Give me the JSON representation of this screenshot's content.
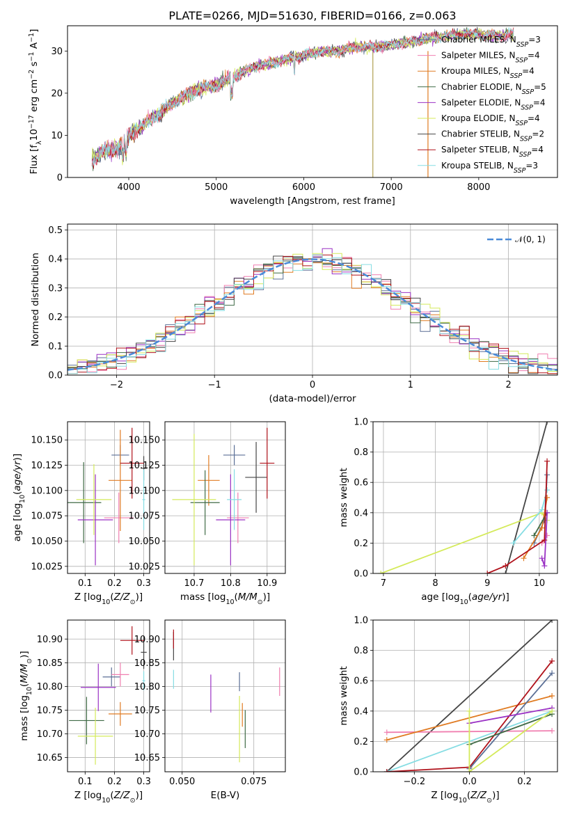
{
  "figure": {
    "title": "PLATE=0266, MJD=51630, FIBERID=0166, z=0.063"
  },
  "models": [
    {
      "name": "Chabrier MILES",
      "nssp": "3",
      "color": "#5b6f96"
    },
    {
      "name": "Salpeter MILES",
      "nssp": "4",
      "color": "#f07fb0"
    },
    {
      "name": "Kroupa MILES",
      "nssp": "4",
      "color": "#e07b22"
    },
    {
      "name": "Chabrier ELODIE",
      "nssp": "5",
      "color": "#3f6a45"
    },
    {
      "name": "Salpeter ELODIE",
      "nssp": "4",
      "color": "#9a31c4"
    },
    {
      "name": "Kroupa ELODIE",
      "nssp": "4",
      "color": "#d4ea5a"
    },
    {
      "name": "Chabrier STELIB",
      "nssp": "2",
      "color": "#444444"
    },
    {
      "name": "Salpeter STELIB",
      "nssp": "4",
      "color": "#b0121b"
    },
    {
      "name": "Kroupa STELIB",
      "nssp": "3",
      "color": "#86dde3"
    }
  ],
  "chart_data": [
    {
      "id": "spectrum",
      "type": "line",
      "xlabel": "wavelength [Angstrom, rest frame]",
      "ylabel": "Flux [f_λ 10^-17 erg cm^-2 s^-1 A^-1]",
      "xlim": [
        3300,
        8900
      ],
      "ylim": [
        0,
        36
      ],
      "xticks": [
        "4000",
        "5000",
        "6000",
        "7000",
        "8000"
      ],
      "yticks": [
        "0",
        "10",
        "20",
        "30"
      ],
      "grid": false,
      "legend": "right",
      "continuum": [
        [
          3580,
          4
        ],
        [
          3700,
          6
        ],
        [
          3850,
          7
        ],
        [
          3950,
          8
        ],
        [
          4000,
          10
        ],
        [
          4200,
          13
        ],
        [
          4400,
          16
        ],
        [
          4600,
          19
        ],
        [
          4800,
          21
        ],
        [
          5000,
          22
        ],
        [
          5200,
          24
        ],
        [
          5400,
          26
        ],
        [
          5600,
          27
        ],
        [
          5800,
          28
        ],
        [
          6000,
          29
        ],
        [
          6200,
          30
        ],
        [
          6400,
          30
        ],
        [
          6600,
          31
        ],
        [
          6800,
          31
        ],
        [
          7000,
          31.5
        ],
        [
          7200,
          32
        ],
        [
          7400,
          33
        ],
        [
          7600,
          33.5
        ],
        [
          7800,
          34
        ],
        [
          8000,
          34
        ],
        [
          8200,
          33.5
        ],
        [
          8400,
          34
        ]
      ],
      "spikes": [
        [
          6790,
          0
        ],
        [
          7420,
          0
        ]
      ]
    },
    {
      "id": "residuals",
      "type": "histogram",
      "xlabel": "(data-model)/error",
      "ylabel": "Normed distribution",
      "xlim": [
        -2.5,
        2.5
      ],
      "ylim": [
        0,
        0.52
      ],
      "xticks": [
        "−2",
        "−1",
        "0",
        "1",
        "2"
      ],
      "yticks": [
        "0.0",
        "0.1",
        "0.2",
        "0.3",
        "0.4",
        "0.5"
      ],
      "grid": true,
      "legend": "top-right",
      "reference_label": "𝒩(0, 1)",
      "bin_width": 0.1
    },
    {
      "id": "age_vs_Z",
      "type": "errorbar",
      "xlabel": "Z [log10(Z/Z⊙)]",
      "ylabel": "age  [log10(age/yr)]",
      "xlim": [
        0.04,
        0.32
      ],
      "ylim": [
        10.018,
        10.168
      ],
      "xticks": [
        "0.1",
        "0.2",
        "0.3"
      ],
      "yticks": [
        "10.025",
        "10.050",
        "10.075",
        "10.100",
        "10.125",
        "10.150"
      ],
      "points": [
        {
          "m": 0,
          "x": 0.22,
          "xe": 0.03,
          "y": 10.135,
          "ye": 0.01
        },
        {
          "m": 1,
          "x": 0.215,
          "xe": 0.05,
          "y": 10.073,
          "ye": 0.025
        },
        {
          "m": 2,
          "x": 0.22,
          "xe": 0.04,
          "y": 10.11,
          "ye": 0.05
        },
        {
          "m": 3,
          "x": 0.095,
          "xe": 0.06,
          "y": 10.088,
          "ye": 0.04
        },
        {
          "m": 4,
          "x": 0.135,
          "xe": 0.06,
          "y": 10.071,
          "ye": 0.045
        },
        {
          "m": 5,
          "x": 0.13,
          "xe": 0.06,
          "y": 10.091,
          "ye": 0.035
        },
        {
          "m": 6,
          "x": 0.3,
          "xe": 0.01,
          "y": 10.122,
          "ye": 0.012
        },
        {
          "m": 7,
          "x": 0.26,
          "xe": 0.04,
          "y": 10.127,
          "ye": 0.035
        },
        {
          "m": 8,
          "x": 0.3,
          "xe": 0.005,
          "y": 10.091,
          "ye": 0.03
        }
      ]
    },
    {
      "id": "age_vs_mass",
      "type": "errorbar",
      "xlabel": "mass [log10(M/M⊙)]",
      "ylabel": "",
      "xlim": [
        10.62,
        10.95
      ],
      "ylim": [
        10.018,
        10.168
      ],
      "xticks": [
        "10.7",
        "10.8",
        "10.9"
      ],
      "yticks": [
        "10.025",
        "10.050",
        "10.075",
        "10.100",
        "10.125",
        "10.150"
      ],
      "points": [
        {
          "m": 0,
          "x": 10.81,
          "xe": 0.03,
          "y": 10.135,
          "ye": 0.01
        },
        {
          "m": 1,
          "x": 10.82,
          "xe": 0.03,
          "y": 10.073,
          "ye": 0.025
        },
        {
          "m": 2,
          "x": 10.74,
          "xe": 0.03,
          "y": 10.11,
          "ye": 0.025
        },
        {
          "m": 3,
          "x": 10.73,
          "xe": 0.04,
          "y": 10.088,
          "ye": 0.032
        },
        {
          "m": 4,
          "x": 10.8,
          "xe": 0.04,
          "y": 10.071,
          "ye": 0.045
        },
        {
          "m": 5,
          "x": 10.7,
          "xe": 0.06,
          "y": 10.091,
          "ye": 0.065
        },
        {
          "m": 6,
          "x": 10.87,
          "xe": 0.03,
          "y": 10.113,
          "ye": 0.035
        },
        {
          "m": 7,
          "x": 10.9,
          "xe": 0.02,
          "y": 10.127,
          "ye": 0.035
        },
        {
          "m": 8,
          "x": 10.81,
          "xe": 0.02,
          "y": 10.091,
          "ye": 0.03
        }
      ]
    },
    {
      "id": "massweight_vs_age",
      "type": "line",
      "xlabel": "age  [log10(age/yr)]",
      "ylabel": "mass weight",
      "xlim": [
        6.8,
        10.35
      ],
      "ylim": [
        0,
        1.0
      ],
      "xticks": [
        "7",
        "8",
        "9",
        "10"
      ],
      "yticks": [
        "0.0",
        "0.2",
        "0.4",
        "0.6",
        "0.8",
        "1.0"
      ],
      "grid": true,
      "series": [
        {
          "m": 6,
          "points": [
            [
              9.35,
              0
            ],
            [
              10.15,
              1.0
            ]
          ]
        },
        {
          "m": 5,
          "points": [
            [
              6.95,
              0
            ],
            [
              10.05,
              0.4
            ],
            [
              10.15,
              0.35
            ]
          ]
        },
        {
          "m": 8,
          "points": [
            [
              9.5,
              0.2
            ],
            [
              10.05,
              0.42
            ],
            [
              10.15,
              0.55
            ]
          ]
        },
        {
          "m": 0,
          "points": [
            [
              9.9,
              0.2
            ],
            [
              10.1,
              0.35
            ],
            [
              10.15,
              0.65
            ]
          ]
        },
        {
          "m": 1,
          "points": [
            [
              10.05,
              0.2
            ],
            [
              10.15,
              0.25
            ]
          ]
        },
        {
          "m": 2,
          "points": [
            [
              9.7,
              0.1
            ],
            [
              10.05,
              0.3
            ],
            [
              10.15,
              0.5
            ]
          ]
        },
        {
          "m": 3,
          "points": [
            [
              9.9,
              0.25
            ],
            [
              10.15,
              0.4
            ]
          ]
        },
        {
          "m": 4,
          "points": [
            [
              10.05,
              0.1
            ],
            [
              10.1,
              0.05
            ],
            [
              10.15,
              0.4
            ]
          ]
        },
        {
          "m": 7,
          "points": [
            [
              9.0,
              0
            ],
            [
              9.35,
              0.05
            ],
            [
              10.1,
              0.22
            ],
            [
              10.15,
              0.74
            ]
          ]
        }
      ]
    },
    {
      "id": "mass_vs_Z",
      "type": "errorbar",
      "xlabel": "Z [log10(Z/Z⊙)]",
      "ylabel": "mass [log10(M/M⊙)]",
      "xlim": [
        0.04,
        0.32
      ],
      "ylim": [
        10.62,
        10.94
      ],
      "xticks": [
        "0.1",
        "0.2",
        "0.3"
      ],
      "yticks": [
        "10.65",
        "10.70",
        "10.75",
        "10.80",
        "10.85",
        "10.90"
      ],
      "points": [
        {
          "m": 0,
          "x": 0.19,
          "xe": 0.03,
          "y": 10.82,
          "ye": 0.02
        },
        {
          "m": 1,
          "x": 0.22,
          "xe": 0.03,
          "y": 10.825,
          "ye": 0.025
        },
        {
          "m": 2,
          "x": 0.22,
          "xe": 0.04,
          "y": 10.742,
          "ye": 0.025
        },
        {
          "m": 3,
          "x": 0.105,
          "xe": 0.06,
          "y": 10.728,
          "ye": 0.05
        },
        {
          "m": 4,
          "x": 0.145,
          "xe": 0.06,
          "y": 10.798,
          "ye": 0.05
        },
        {
          "m": 5,
          "x": 0.135,
          "xe": 0.06,
          "y": 10.695,
          "ye": 0.06
        },
        {
          "m": 6,
          "x": 0.3,
          "xe": 0.01,
          "y": 10.872,
          "ye": 0.035
        },
        {
          "m": 7,
          "x": 0.26,
          "xe": 0.04,
          "y": 10.897,
          "ye": 0.03
        },
        {
          "m": 8,
          "x": 0.3,
          "xe": 0.005,
          "y": 10.812,
          "ye": 0.02
        }
      ]
    },
    {
      "id": "mass_vs_ebv",
      "type": "errorbar",
      "xlabel": "E(B-V)",
      "ylabel": "",
      "xlim": [
        0.044,
        0.086
      ],
      "ylim": [
        10.62,
        10.94
      ],
      "xticks": [
        "0.050",
        "0.075"
      ],
      "yticks": [
        "10.65",
        "10.70",
        "10.75",
        "10.80",
        "10.85",
        "10.90"
      ],
      "points": [
        {
          "m": 0,
          "x": 0.07,
          "xe": 0.0,
          "y": 10.81,
          "ye": 0.02
        },
        {
          "m": 1,
          "x": 0.084,
          "xe": 0.0,
          "y": 10.81,
          "ye": 0.03
        },
        {
          "m": 2,
          "x": 0.071,
          "xe": 0.0,
          "y": 10.74,
          "ye": 0.025
        },
        {
          "m": 3,
          "x": 0.072,
          "xe": 0.0,
          "y": 10.71,
          "ye": 0.04
        },
        {
          "m": 4,
          "x": 0.06,
          "xe": 0.0,
          "y": 10.785,
          "ye": 0.04
        },
        {
          "m": 5,
          "x": 0.07,
          "xe": 0.0,
          "y": 10.71,
          "ye": 0.07
        },
        {
          "m": 6,
          "x": 0.047,
          "xe": 0.0,
          "y": 10.885,
          "ye": 0.03
        },
        {
          "m": 7,
          "x": 0.047,
          "xe": 0.0,
          "y": 10.9,
          "ye": 0.02
        },
        {
          "m": 8,
          "x": 0.047,
          "xe": 0.0,
          "y": 10.815,
          "ye": 0.02
        }
      ]
    },
    {
      "id": "massweight_vs_Z",
      "type": "line",
      "xlabel": "Z [log10(Z/Z⊙)]",
      "ylabel": "mass weight",
      "xlim": [
        -0.35,
        0.32
      ],
      "ylim": [
        0,
        1.0
      ],
      "xticks": [
        "−0.2",
        "0.0",
        "0.2"
      ],
      "yticks": [
        "0.0",
        "0.2",
        "0.4",
        "0.6",
        "0.8",
        "1.0"
      ],
      "grid": true,
      "series": [
        {
          "m": 6,
          "points": [
            [
              -0.3,
              0
            ],
            [
              0.3,
              1.0
            ]
          ]
        },
        {
          "m": 1,
          "points": [
            [
              -0.3,
              0.26
            ],
            [
              0.3,
              0.27
            ]
          ]
        },
        {
          "m": 2,
          "points": [
            [
              -0.3,
              0.21
            ],
            [
              0.3,
              0.5
            ]
          ]
        },
        {
          "m": 8,
          "points": [
            [
              -0.3,
              0
            ],
            [
              0.3,
              0.4
            ]
          ]
        },
        {
          "m": 7,
          "points": [
            [
              -0.3,
              0
            ],
            [
              0.0,
              0.03
            ],
            [
              0.3,
              0.73
            ]
          ]
        },
        {
          "m": 0,
          "points": [
            [
              0.0,
              0.02
            ],
            [
              0.3,
              0.65
            ]
          ]
        },
        {
          "m": 3,
          "points": [
            [
              0.0,
              0.18
            ],
            [
              0.3,
              0.38
            ]
          ]
        },
        {
          "m": 4,
          "points": [
            [
              0.0,
              0.32
            ],
            [
              0.3,
              0.42
            ]
          ]
        },
        {
          "m": 5,
          "points": [
            [
              0.0,
              0.4
            ],
            [
              0.0,
              0.0
            ],
            [
              0.3,
              0.4
            ]
          ]
        }
      ]
    }
  ]
}
